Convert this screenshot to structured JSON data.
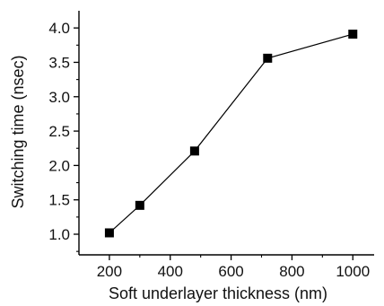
{
  "chart_data": {
    "type": "line",
    "title": "",
    "xlabel": "Soft underlayer thickness (nm)",
    "ylabel": "Switching time (nsec)",
    "x": [
      200,
      300,
      480,
      720,
      1000
    ],
    "series": [
      {
        "values": [
          1.02,
          1.42,
          2.21,
          3.56,
          3.91
        ],
        "marker": "square"
      }
    ],
    "xlim": [
      100,
      1070
    ],
    "ylim": [
      0.7,
      4.25
    ],
    "xticks": [
      200,
      400,
      600,
      800,
      1000
    ],
    "xtick_labels": [
      "200",
      "400",
      "600",
      "800",
      "1000"
    ],
    "yticks": [
      1.0,
      1.5,
      2.0,
      2.5,
      3.0,
      3.5,
      4.0
    ],
    "ytick_labels": [
      "1.0",
      "1.5",
      "2.0",
      "2.5",
      "3.0",
      "3.5",
      "4.0"
    ],
    "grid": false,
    "colors": {
      "line": "#000000",
      "marker": "#000000",
      "axis": "#000000"
    }
  }
}
